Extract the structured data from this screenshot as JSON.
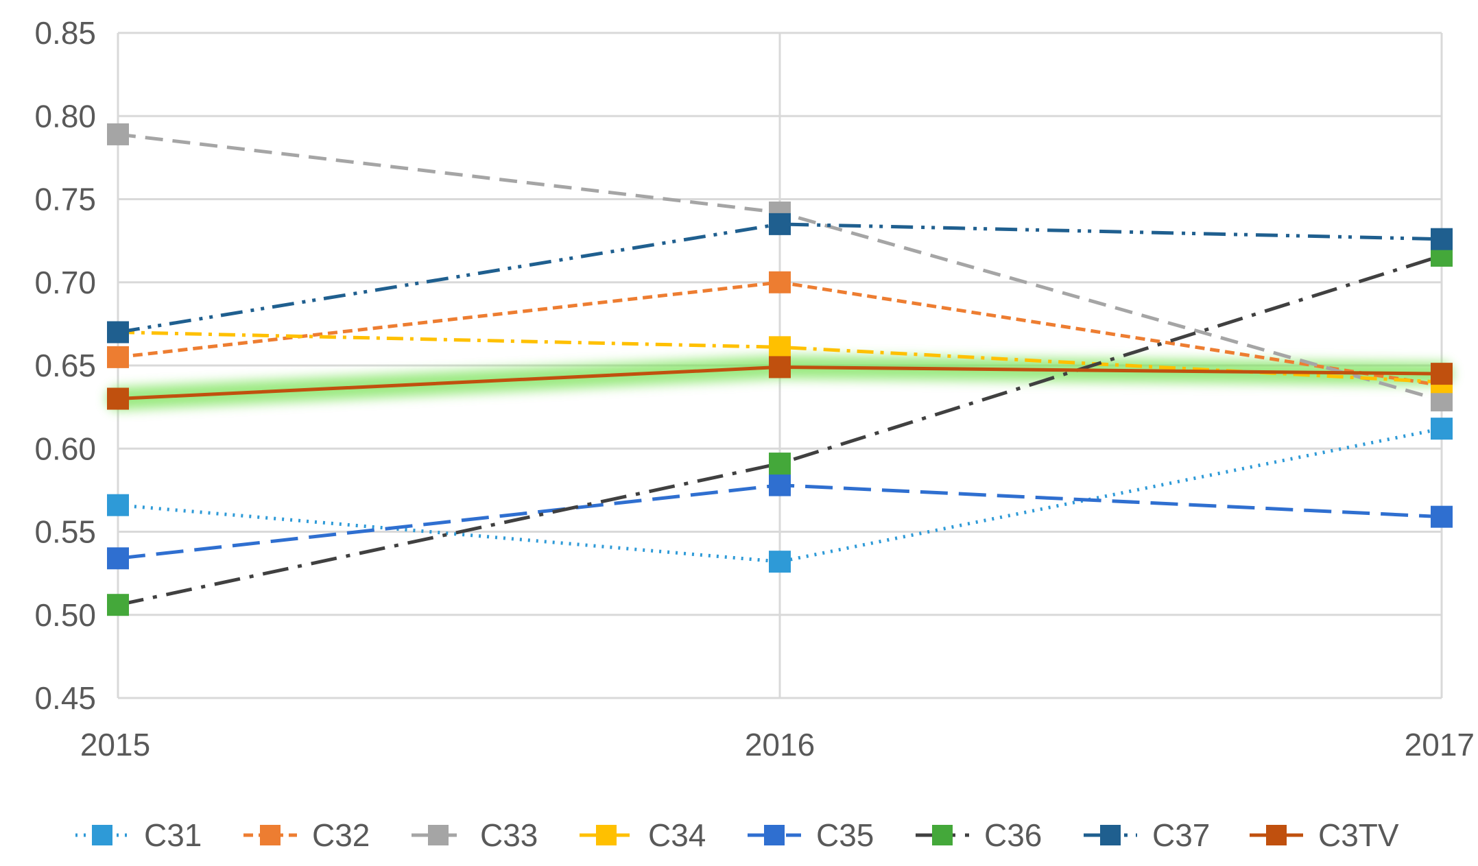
{
  "chart_data": {
    "type": "line",
    "title": "",
    "xlabel": "",
    "ylabel": "",
    "x": [
      "2015",
      "2016",
      "2017"
    ],
    "ylim": [
      0.45,
      0.85
    ],
    "yticks": [
      "0.45",
      "0.50",
      "0.55",
      "0.60",
      "0.65",
      "0.70",
      "0.75",
      "0.80",
      "0.85"
    ],
    "grid": true,
    "legend_position": "bottom",
    "highlighted_series": "C3TV",
    "series": [
      {
        "name": "C31",
        "values": [
          0.566,
          0.532,
          0.612
        ],
        "color": "#2E9AD7",
        "dash": "dot"
      },
      {
        "name": "C32",
        "values": [
          0.655,
          0.7,
          0.638
        ],
        "color": "#ED7D31",
        "dash": "short-dash"
      },
      {
        "name": "C33",
        "values": [
          0.789,
          0.742,
          0.629
        ],
        "color": "#A5A5A5",
        "dash": "dash"
      },
      {
        "name": "C34",
        "values": [
          0.67,
          0.661,
          0.64
        ],
        "color": "#FFC000",
        "dash": "dash-dot"
      },
      {
        "name": "C35",
        "values": [
          0.534,
          0.578,
          0.559
        ],
        "color": "#2F6FD0",
        "dash": "long-dash"
      },
      {
        "name": "C36",
        "values": [
          0.506,
          0.591,
          0.716
        ],
        "color": "#44A83A",
        "dash": "long-dash-dot",
        "line_color": "#404040"
      },
      {
        "name": "C37",
        "values": [
          0.67,
          0.735,
          0.726
        ],
        "color": "#1F5F8F",
        "dash": "long-dash-dot-dot"
      },
      {
        "name": "C3TV",
        "values": [
          0.63,
          0.649,
          0.645
        ],
        "color": "#C0500E",
        "dash": "solid"
      }
    ]
  }
}
